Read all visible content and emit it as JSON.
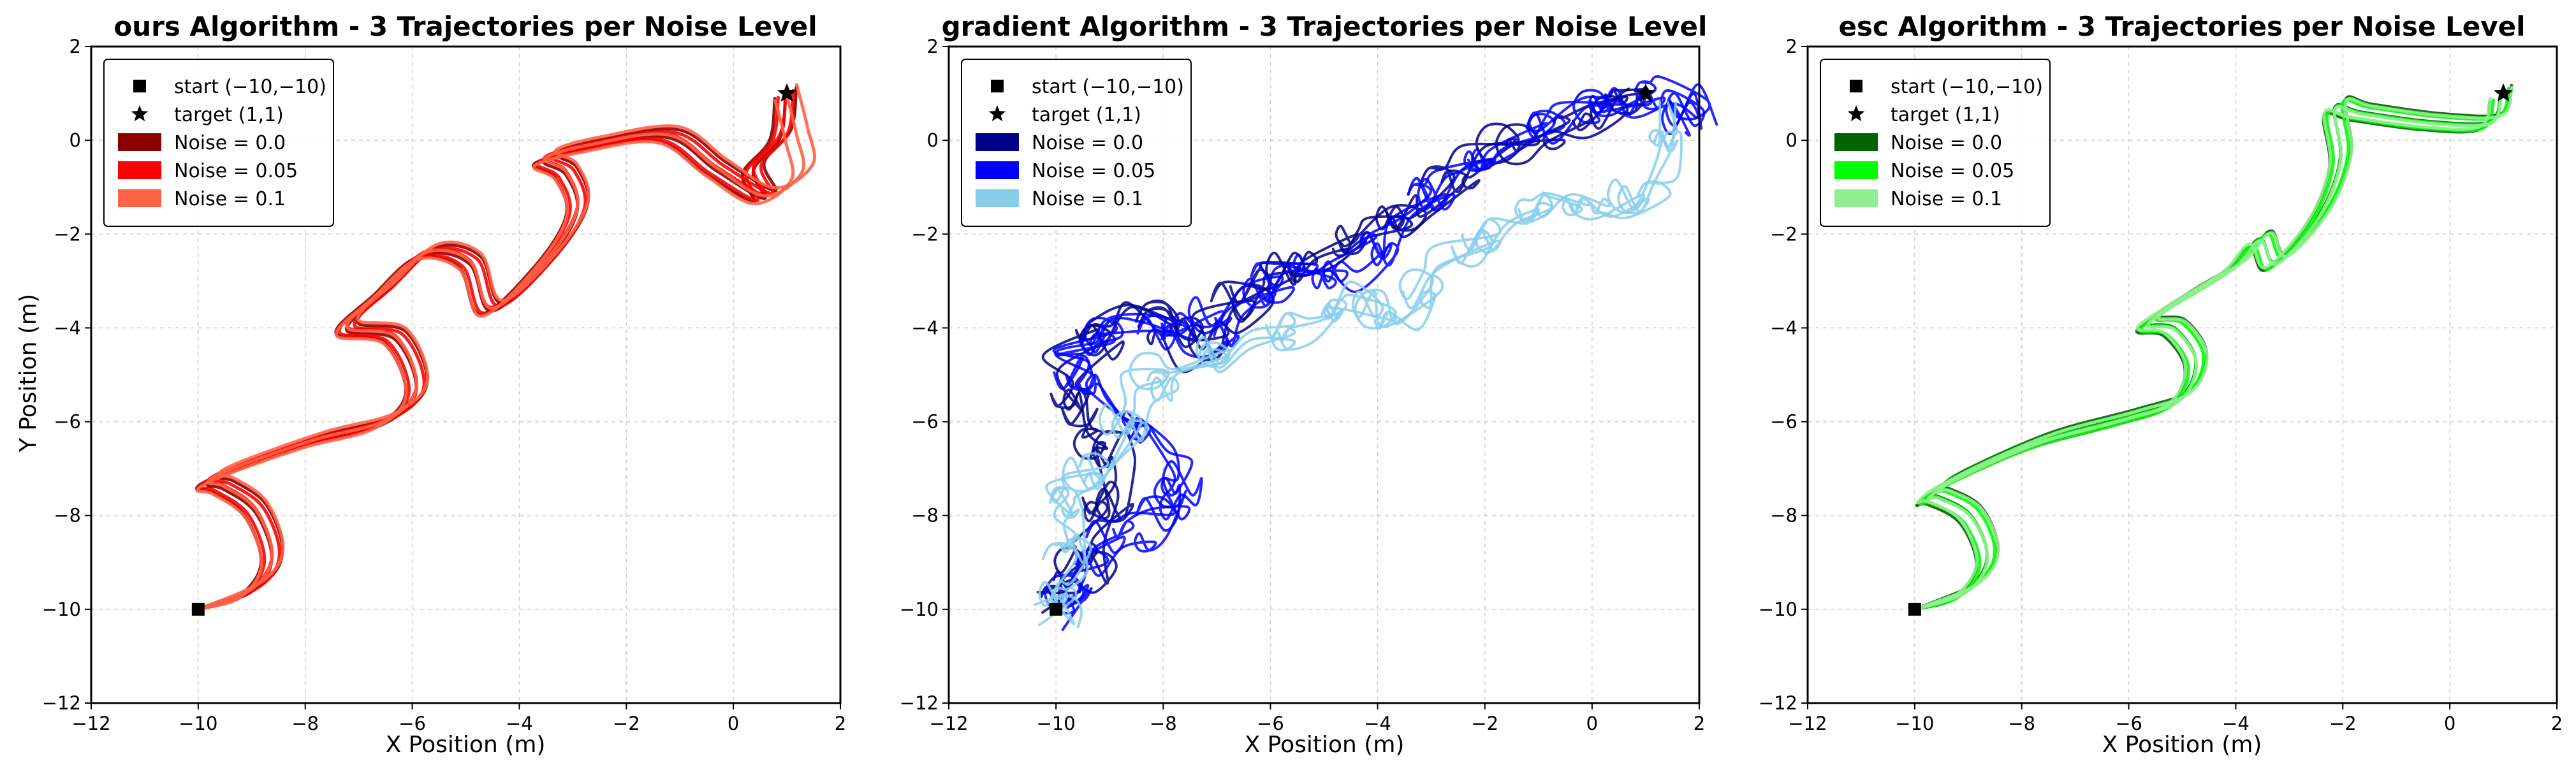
{
  "chart_data": [
    {
      "type": "line",
      "title": "ours Algorithm - 3 Trajectories per Noise Level",
      "xlabel": "X Position (m)",
      "ylabel": "Y Position (m)",
      "xlim": [
        -12,
        2
      ],
      "ylim": [
        -12,
        2
      ],
      "xticks": [
        -12,
        -10,
        -8,
        -6,
        -4,
        -2,
        0,
        2
      ],
      "yticks": [
        -12,
        -10,
        -8,
        -6,
        -4,
        -2,
        0,
        2
      ],
      "grid": true,
      "legend_position": "upper-left",
      "start": [
        -10,
        -10
      ],
      "target": [
        1,
        1
      ],
      "legend": [
        {
          "label": "start (−10,−10)",
          "marker": "square"
        },
        {
          "label": "target (1,1)",
          "marker": "star"
        },
        {
          "label": "Noise = 0.0",
          "color": "#8b0000"
        },
        {
          "label": "Noise = 0.05",
          "color": "#ff0000"
        },
        {
          "label": "Noise = 0.1",
          "color": "#ff6347"
        }
      ],
      "series": [
        {
          "name": "Noise = 0.0",
          "color": "#8b0000",
          "trajectories": 3,
          "path": [
            [
              -10,
              -10
            ],
            [
              -9.0,
              -9.6
            ],
            [
              -8.6,
              -8.9
            ],
            [
              -8.9,
              -7.9
            ],
            [
              -9.5,
              -7.4
            ],
            [
              -9.8,
              -7.3
            ],
            [
              -9.3,
              -7.0
            ],
            [
              -7.8,
              -6.4
            ],
            [
              -6.5,
              -6.0
            ],
            [
              -5.9,
              -5.3
            ],
            [
              -6.3,
              -4.2
            ],
            [
              -7.2,
              -4.0
            ],
            [
              -6.5,
              -3.2
            ],
            [
              -5.7,
              -2.4
            ],
            [
              -4.9,
              -2.6
            ],
            [
              -4.5,
              -3.6
            ],
            [
              -3.5,
              -2.6
            ],
            [
              -2.9,
              -1.5
            ],
            [
              -3.1,
              -0.7
            ],
            [
              -3.5,
              -0.4
            ],
            [
              -2.6,
              -0.1
            ],
            [
              -1.2,
              0.1
            ],
            [
              -0.3,
              -0.6
            ],
            [
              0.6,
              -1.2
            ],
            [
              0.4,
              -0.6
            ],
            [
              0.9,
              0.1
            ],
            [
              1.0,
              1.0
            ]
          ]
        },
        {
          "name": "Noise = 0.05",
          "color": "#ff0000",
          "trajectories": 3,
          "path": [
            [
              -10,
              -10
            ],
            [
              -9.0,
              -9.6
            ],
            [
              -8.6,
              -8.9
            ],
            [
              -8.9,
              -7.9
            ],
            [
              -9.5,
              -7.4
            ],
            [
              -9.8,
              -7.3
            ],
            [
              -9.3,
              -7.0
            ],
            [
              -7.8,
              -6.4
            ],
            [
              -6.5,
              -6.0
            ],
            [
              -5.9,
              -5.3
            ],
            [
              -6.3,
              -4.2
            ],
            [
              -7.2,
              -4.0
            ],
            [
              -6.5,
              -3.2
            ],
            [
              -5.7,
              -2.4
            ],
            [
              -4.9,
              -2.6
            ],
            [
              -4.5,
              -3.6
            ],
            [
              -3.5,
              -2.6
            ],
            [
              -2.9,
              -1.5
            ],
            [
              -3.1,
              -0.7
            ],
            [
              -3.5,
              -0.4
            ],
            [
              -2.6,
              -0.1
            ],
            [
              -1.2,
              0.1
            ],
            [
              -0.3,
              -0.6
            ],
            [
              0.6,
              -1.2
            ],
            [
              0.4,
              -0.6
            ],
            [
              0.9,
              0.1
            ],
            [
              1.0,
              1.0
            ]
          ]
        },
        {
          "name": "Noise = 0.1",
          "color": "#ff6347",
          "trajectories": 3,
          "path": [
            [
              -10,
              -10
            ],
            [
              -9.0,
              -9.6
            ],
            [
              -8.6,
              -8.9
            ],
            [
              -8.9,
              -7.9
            ],
            [
              -9.5,
              -7.4
            ],
            [
              -9.8,
              -7.3
            ],
            [
              -9.3,
              -7.0
            ],
            [
              -7.8,
              -6.4
            ],
            [
              -6.5,
              -6.0
            ],
            [
              -5.9,
              -5.3
            ],
            [
              -6.3,
              -4.2
            ],
            [
              -7.2,
              -4.0
            ],
            [
              -6.5,
              -3.2
            ],
            [
              -5.7,
              -2.4
            ],
            [
              -4.9,
              -2.6
            ],
            [
              -4.5,
              -3.6
            ],
            [
              -3.5,
              -2.6
            ],
            [
              -2.9,
              -1.5
            ],
            [
              -3.1,
              -0.7
            ],
            [
              -3.5,
              -0.4
            ],
            [
              -2.6,
              -0.1
            ],
            [
              -1.2,
              0.1
            ],
            [
              -0.3,
              -0.6
            ],
            [
              0.6,
              -1.2
            ],
            [
              1.3,
              -0.7
            ],
            [
              1.2,
              0.1
            ],
            [
              1.0,
              1.0
            ]
          ]
        }
      ]
    },
    {
      "type": "line",
      "title": "gradient Algorithm - 3 Trajectories per Noise Level",
      "xlabel": "X Position (m)",
      "ylabel": "",
      "xlim": [
        -12,
        2
      ],
      "ylim": [
        -12,
        2
      ],
      "xticks": [
        -12,
        -10,
        -8,
        -6,
        -4,
        -2,
        0,
        2
      ],
      "yticks": [
        -12,
        -10,
        -8,
        -6,
        -4,
        -2,
        0,
        2
      ],
      "grid": true,
      "legend_position": "upper-left",
      "start": [
        -10,
        -10
      ],
      "target": [
        1,
        1
      ],
      "legend": [
        {
          "label": "start (−10,−10)",
          "marker": "square"
        },
        {
          "label": "target (1,1)",
          "marker": "star"
        },
        {
          "label": "Noise = 0.0",
          "color": "#00008b"
        },
        {
          "label": "Noise = 0.05",
          "color": "#0000ff"
        },
        {
          "label": "Noise = 0.1",
          "color": "#87ceeb"
        }
      ],
      "series": [
        {
          "name": "Noise = 0.0",
          "color": "#00008b",
          "trajectories": 3,
          "path": [
            [
              -10,
              -10
            ],
            [
              -9.6,
              -9.2
            ],
            [
              -9.2,
              -8.2
            ],
            [
              -8.8,
              -7.0
            ],
            [
              -9.5,
              -6.0
            ],
            [
              -9.8,
              -4.8
            ],
            [
              -9.0,
              -3.9
            ],
            [
              -8.0,
              -4.5
            ],
            [
              -7.0,
              -3.8
            ],
            [
              -6.0,
              -3.0
            ],
            [
              -5.0,
              -2.5
            ],
            [
              -4.0,
              -1.8
            ],
            [
              -3.0,
              -1.2
            ],
            [
              -2.0,
              -0.4
            ],
            [
              -1.0,
              0.2
            ],
            [
              0.0,
              0.5
            ],
            [
              1.0,
              0.8
            ]
          ]
        },
        {
          "name": "Noise = 0.05",
          "color": "#0000ff",
          "trajectories": 3,
          "path": [
            [
              -10,
              -10
            ],
            [
              -9.6,
              -9.0
            ],
            [
              -8.5,
              -8.3
            ],
            [
              -7.6,
              -8.0
            ],
            [
              -8.0,
              -6.8
            ],
            [
              -9.0,
              -5.5
            ],
            [
              -9.6,
              -4.2
            ],
            [
              -8.6,
              -3.7
            ],
            [
              -7.5,
              -4.3
            ],
            [
              -6.5,
              -3.5
            ],
            [
              -5.5,
              -2.6
            ],
            [
              -4.5,
              -2.8
            ],
            [
              -3.5,
              -1.6
            ],
            [
              -2.5,
              -0.8
            ],
            [
              -1.5,
              0.0
            ],
            [
              -0.5,
              0.6
            ],
            [
              0.5,
              0.9
            ],
            [
              1.5,
              1.2
            ],
            [
              2.0,
              0.5
            ]
          ]
        },
        {
          "name": "Noise = 0.1",
          "color": "#87ceeb",
          "trajectories": 3,
          "path": [
            [
              -10,
              -10
            ],
            [
              -9.7,
              -9.3
            ],
            [
              -9.6,
              -8.4
            ],
            [
              -9.8,
              -7.2
            ],
            [
              -9.0,
              -6.5
            ],
            [
              -8.5,
              -5.2
            ],
            [
              -7.5,
              -4.8
            ],
            [
              -6.5,
              -4.5
            ],
            [
              -5.5,
              -4.0
            ],
            [
              -4.5,
              -3.3
            ],
            [
              -3.5,
              -3.8
            ],
            [
              -2.5,
              -2.6
            ],
            [
              -1.5,
              -2.1
            ],
            [
              -0.5,
              -1.2
            ],
            [
              0.5,
              -1.5
            ],
            [
              1.3,
              -0.8
            ],
            [
              1.5,
              0.5
            ]
          ]
        }
      ]
    },
    {
      "type": "line",
      "title": "esc Algorithm - 3 Trajectories per Noise Level",
      "xlabel": "X Position (m)",
      "ylabel": "",
      "xlim": [
        -12,
        2
      ],
      "ylim": [
        -12,
        2
      ],
      "xticks": [
        -12,
        -10,
        -8,
        -6,
        -4,
        -2,
        0,
        2
      ],
      "yticks": [
        -12,
        -10,
        -8,
        -6,
        -4,
        -2,
        0,
        2
      ],
      "grid": true,
      "legend_position": "upper-left",
      "start": [
        -10,
        -10
      ],
      "target": [
        1,
        1
      ],
      "legend": [
        {
          "label": "start (−10,−10)",
          "marker": "square"
        },
        {
          "label": "target (1,1)",
          "marker": "star"
        },
        {
          "label": "Noise = 0.0",
          "color": "#006400"
        },
        {
          "label": "Noise = 0.05",
          "color": "#00ff00"
        },
        {
          "label": "Noise = 0.1",
          "color": "#90ee90"
        }
      ],
      "series": [
        {
          "name": "Noise = 0.0",
          "color": "#006400",
          "trajectories": 3,
          "path": [
            [
              -10,
              -10
            ],
            [
              -9.0,
              -9.6
            ],
            [
              -8.6,
              -8.9
            ],
            [
              -8.9,
              -8.0
            ],
            [
              -9.5,
              -7.6
            ],
            [
              -9.7,
              -7.6
            ],
            [
              -9.2,
              -7.2
            ],
            [
              -7.6,
              -6.4
            ],
            [
              -6.0,
              -5.9
            ],
            [
              -5.0,
              -5.5
            ],
            [
              -4.7,
              -4.7
            ],
            [
              -5.1,
              -4.0
            ],
            [
              -5.6,
              -3.9
            ],
            [
              -5.0,
              -3.4
            ],
            [
              -4.0,
              -2.7
            ],
            [
              -3.5,
              -2.1
            ],
            [
              -3.2,
              -2.6
            ],
            [
              -2.4,
              -1.6
            ],
            [
              -2.0,
              -0.4
            ],
            [
              -2.1,
              0.7
            ],
            [
              -1.6,
              0.6
            ],
            [
              -0.3,
              0.4
            ],
            [
              0.8,
              0.4
            ],
            [
              1.0,
              1.0
            ]
          ]
        },
        {
          "name": "Noise = 0.05",
          "color": "#00ff00",
          "trajectories": 3,
          "path": [
            [
              -10,
              -10
            ],
            [
              -9.0,
              -9.6
            ],
            [
              -8.6,
              -8.9
            ],
            [
              -8.9,
              -8.0
            ],
            [
              -9.5,
              -7.6
            ],
            [
              -9.7,
              -7.6
            ],
            [
              -9.2,
              -7.2
            ],
            [
              -7.6,
              -6.4
            ],
            [
              -6.0,
              -5.9
            ],
            [
              -5.0,
              -5.5
            ],
            [
              -4.7,
              -4.7
            ],
            [
              -5.1,
              -4.0
            ],
            [
              -5.6,
              -3.9
            ],
            [
              -5.0,
              -3.4
            ],
            [
              -4.0,
              -2.7
            ],
            [
              -3.5,
              -2.1
            ],
            [
              -3.2,
              -2.6
            ],
            [
              -2.4,
              -1.6
            ],
            [
              -2.0,
              -0.4
            ],
            [
              -2.1,
              0.7
            ],
            [
              -1.6,
              0.6
            ],
            [
              -0.3,
              0.4
            ],
            [
              0.8,
              0.4
            ],
            [
              1.0,
              1.0
            ]
          ]
        },
        {
          "name": "Noise = 0.1",
          "color": "#90ee90",
          "trajectories": 3,
          "path": [
            [
              -10,
              -10
            ],
            [
              -9.0,
              -9.6
            ],
            [
              -8.6,
              -8.9
            ],
            [
              -8.9,
              -8.0
            ],
            [
              -9.5,
              -7.6
            ],
            [
              -9.7,
              -7.6
            ],
            [
              -9.2,
              -7.2
            ],
            [
              -7.6,
              -6.4
            ],
            [
              -6.0,
              -5.9
            ],
            [
              -5.0,
              -5.5
            ],
            [
              -4.7,
              -4.7
            ],
            [
              -5.1,
              -4.0
            ],
            [
              -5.6,
              -3.9
            ],
            [
              -5.0,
              -3.4
            ],
            [
              -4.0,
              -2.7
            ],
            [
              -3.5,
              -2.1
            ],
            [
              -3.2,
              -2.6
            ],
            [
              -2.4,
              -1.6
            ],
            [
              -2.0,
              -0.4
            ],
            [
              -2.1,
              0.7
            ],
            [
              -1.6,
              0.6
            ],
            [
              -0.3,
              0.4
            ],
            [
              0.8,
              0.4
            ],
            [
              1.0,
              1.0
            ]
          ]
        }
      ]
    }
  ]
}
